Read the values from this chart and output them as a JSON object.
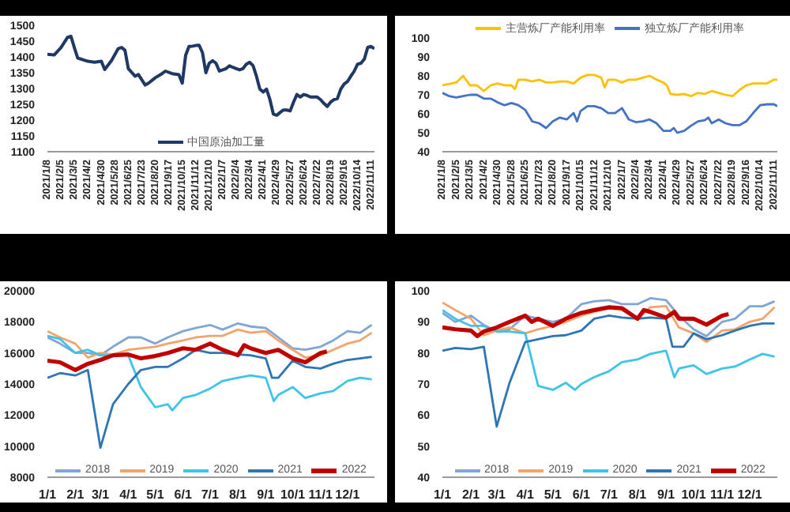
{
  "chart_data": [
    {
      "type": "line",
      "legend": "bottom",
      "ylim": [
        1100,
        1500
      ],
      "yticks": [
        1100,
        1150,
        1200,
        1250,
        1300,
        1350,
        1400,
        1450,
        1500
      ],
      "xlim": [
        "2021-01-08",
        "2022-11-18"
      ],
      "xticks": [
        {
          "value": "2021-01-08",
          "label": "2021/1/8"
        },
        {
          "value": "2021-02-05",
          "label": "2021/2/5"
        },
        {
          "value": "2021-03-05",
          "label": "2021/3/5"
        },
        {
          "value": "2021-04-02",
          "label": "2021/4/2"
        },
        {
          "value": "2021-04-30",
          "label": "2021/4/30"
        },
        {
          "value": "2021-05-28",
          "label": "2021/5/28"
        },
        {
          "value": "2021-06-25",
          "label": "2021/6/25"
        },
        {
          "value": "2021-07-23",
          "label": "2021/7/23"
        },
        {
          "value": "2021-08-20",
          "label": "2021/8/20"
        },
        {
          "value": "2021-09-17",
          "label": "2021/9/17"
        },
        {
          "value": "2021-10-15",
          "label": "2021/10/15"
        },
        {
          "value": "2021-11-12",
          "label": "2021/11/12"
        },
        {
          "value": "2021-12-10",
          "label": "2021/12/10"
        },
        {
          "value": "2022-01-07",
          "label": "2022/1/7"
        },
        {
          "value": "2022-02-04",
          "label": "2022/2/4"
        },
        {
          "value": "2022-03-04",
          "label": "2022/3/4"
        },
        {
          "value": "2022-04-01",
          "label": "2022/4/1"
        },
        {
          "value": "2022-04-29",
          "label": "2022/4/29"
        },
        {
          "value": "2022-05-27",
          "label": "2022/5/27"
        },
        {
          "value": "2022-06-24",
          "label": "2022/6/24"
        },
        {
          "value": "2022-07-22",
          "label": "2022/7/22"
        },
        {
          "value": "2022-08-19",
          "label": "2022/8/19"
        },
        {
          "value": "2022-09-16",
          "label": "2022/9/16"
        },
        {
          "value": "2022-10-14",
          "label": "2022/10/14"
        },
        {
          "value": "2022-11-11",
          "label": "2022/11/11"
        }
      ],
      "series": [
        {
          "name": "中国原油加工量",
          "color": "#1f3864",
          "x": [
            "2021-01-08",
            "2021-01-22",
            "2021-02-05",
            "2021-02-19",
            "2021-02-26",
            "2021-03-05",
            "2021-03-12",
            "2021-03-19",
            "2021-04-02",
            "2021-04-16",
            "2021-04-30",
            "2021-05-07",
            "2021-05-21",
            "2021-06-04",
            "2021-06-11",
            "2021-06-18",
            "2021-06-25",
            "2021-07-09",
            "2021-07-16",
            "2021-07-30",
            "2021-08-06",
            "2021-08-20",
            "2021-09-03",
            "2021-09-10",
            "2021-09-24",
            "2021-10-08",
            "2021-10-15",
            "2021-10-22",
            "2021-10-29",
            "2021-11-05",
            "2021-11-12",
            "2021-11-19",
            "2021-11-26",
            "2021-12-03",
            "2021-12-10",
            "2021-12-17",
            "2021-12-24",
            "2021-12-31",
            "2022-01-07",
            "2022-01-14",
            "2022-01-21",
            "2022-01-28",
            "2022-02-04",
            "2022-02-11",
            "2022-02-18",
            "2022-02-25",
            "2022-03-04",
            "2022-03-11",
            "2022-03-18",
            "2022-03-25",
            "2022-04-01",
            "2022-04-08",
            "2022-04-15",
            "2022-04-22",
            "2022-04-29",
            "2022-05-06",
            "2022-05-13",
            "2022-05-20",
            "2022-05-27",
            "2022-06-03",
            "2022-06-10",
            "2022-06-17",
            "2022-06-24",
            "2022-07-01",
            "2022-07-08",
            "2022-07-15",
            "2022-07-22",
            "2022-07-29",
            "2022-08-05",
            "2022-08-12",
            "2022-08-19",
            "2022-08-26",
            "2022-09-02",
            "2022-09-09",
            "2022-09-16",
            "2022-09-23",
            "2022-09-30",
            "2022-10-07",
            "2022-10-14",
            "2022-10-21",
            "2022-10-28",
            "2022-11-04",
            "2022-11-11",
            "2022-11-18"
          ],
          "values": [
            1408,
            1406,
            1429,
            1462,
            1465,
            1429,
            1396,
            1393,
            1386,
            1383,
            1386,
            1360,
            1388,
            1426,
            1430,
            1421,
            1363,
            1339,
            1344,
            1311,
            1317,
            1334,
            1347,
            1355,
            1347,
            1344,
            1317,
            1405,
            1433,
            1434,
            1436,
            1437,
            1413,
            1350,
            1380,
            1388,
            1380,
            1355,
            1359,
            1363,
            1372,
            1367,
            1363,
            1359,
            1363,
            1377,
            1383,
            1372,
            1339,
            1298,
            1289,
            1298,
            1265,
            1219,
            1215,
            1224,
            1232,
            1232,
            1229,
            1257,
            1281,
            1273,
            1281,
            1278,
            1273,
            1273,
            1273,
            1265,
            1253,
            1243,
            1257,
            1265,
            1268,
            1298,
            1314,
            1322,
            1339,
            1355,
            1377,
            1380,
            1393,
            1430,
            1433,
            1426
          ]
        }
      ]
    },
    {
      "type": "line",
      "legend": "top",
      "ylim": [
        40,
        100
      ],
      "yticks": [
        40,
        50,
        60,
        70,
        80,
        90,
        100
      ],
      "xlim": [
        "2021-01-08",
        "2022-11-18"
      ],
      "xticks": [
        {
          "value": "2021-01-08",
          "label": "2021/1/8"
        },
        {
          "value": "2021-02-05",
          "label": "2021/2/5"
        },
        {
          "value": "2021-03-05",
          "label": "2021/3/5"
        },
        {
          "value": "2021-04-02",
          "label": "2021/4/2"
        },
        {
          "value": "2021-04-30",
          "label": "2021/4/30"
        },
        {
          "value": "2021-05-28",
          "label": "2021/5/28"
        },
        {
          "value": "2021-06-25",
          "label": "2021/6/25"
        },
        {
          "value": "2021-07-23",
          "label": "2021/7/23"
        },
        {
          "value": "2021-08-20",
          "label": "2021/8/20"
        },
        {
          "value": "2021-09-17",
          "label": "2021/9/17"
        },
        {
          "value": "2021-10-15",
          "label": "2021/10/15"
        },
        {
          "value": "2021-11-12",
          "label": "2021/11/12"
        },
        {
          "value": "2021-12-10",
          "label": "2021/12/10"
        },
        {
          "value": "2022-01-07",
          "label": "2022/1/7"
        },
        {
          "value": "2022-02-04",
          "label": "2022/2/4"
        },
        {
          "value": "2022-03-04",
          "label": "2022/3/4"
        },
        {
          "value": "2022-04-01",
          "label": "2022/4/1"
        },
        {
          "value": "2022-04-29",
          "label": "2022/4/29"
        },
        {
          "value": "2022-05-27",
          "label": "2022/5/27"
        },
        {
          "value": "2022-06-24",
          "label": "2022/6/24"
        },
        {
          "value": "2022-07-22",
          "label": "2022/7/22"
        },
        {
          "value": "2022-08-19",
          "label": "2022/8/19"
        },
        {
          "value": "2022-09-16",
          "label": "2022/9/16"
        },
        {
          "value": "2022-10-14",
          "label": "2022/10/14"
        },
        {
          "value": "2022-11-11",
          "label": "2022/11/11"
        }
      ],
      "series": [
        {
          "name": "主营炼厂产能利用率",
          "color": "#ffc000",
          "x": [
            "2021-01-08",
            "2021-02-05",
            "2021-02-19",
            "2021-03-05",
            "2021-03-19",
            "2021-04-02",
            "2021-04-16",
            "2021-04-30",
            "2021-05-14",
            "2021-05-28",
            "2021-06-04",
            "2021-06-11",
            "2021-06-25",
            "2021-07-09",
            "2021-07-23",
            "2021-08-06",
            "2021-08-20",
            "2021-09-03",
            "2021-09-17",
            "2021-10-01",
            "2021-10-15",
            "2021-10-29",
            "2021-11-12",
            "2021-11-26",
            "2021-12-03",
            "2021-12-10",
            "2021-12-24",
            "2022-01-07",
            "2022-01-21",
            "2022-02-04",
            "2022-02-18",
            "2022-03-04",
            "2022-03-18",
            "2022-04-01",
            "2022-04-08",
            "2022-04-15",
            "2022-04-29",
            "2022-05-13",
            "2022-05-27",
            "2022-06-10",
            "2022-06-24",
            "2022-07-08",
            "2022-07-22",
            "2022-08-05",
            "2022-08-19",
            "2022-09-02",
            "2022-09-16",
            "2022-09-30",
            "2022-10-14",
            "2022-10-28",
            "2022-11-11",
            "2022-11-18"
          ],
          "values": [
            75,
            76.5,
            80,
            75,
            75,
            72,
            75,
            76,
            75,
            75,
            73,
            78,
            78,
            77,
            78,
            76.5,
            76.5,
            77,
            77,
            76,
            79,
            80.5,
            80.5,
            79,
            74,
            78,
            78,
            76.5,
            78,
            78,
            79,
            80,
            78,
            76.5,
            75,
            70.5,
            70,
            70.5,
            69.3,
            71,
            70.5,
            72,
            71,
            70,
            69.3,
            72.5,
            75,
            76,
            76,
            76,
            78,
            78
          ]
        },
        {
          "name": "独立炼厂产能利用率",
          "color": "#4472c4",
          "x": [
            "2021-01-08",
            "2021-01-22",
            "2021-02-05",
            "2021-02-19",
            "2021-03-05",
            "2021-03-19",
            "2021-04-02",
            "2021-04-16",
            "2021-04-30",
            "2021-05-14",
            "2021-05-28",
            "2021-06-11",
            "2021-06-25",
            "2021-07-09",
            "2021-07-23",
            "2021-08-06",
            "2021-08-20",
            "2021-09-03",
            "2021-09-17",
            "2021-10-01",
            "2021-10-08",
            "2021-10-15",
            "2021-10-29",
            "2021-11-12",
            "2021-11-26",
            "2021-12-10",
            "2021-12-24",
            "2022-01-07",
            "2022-01-21",
            "2022-02-04",
            "2022-02-18",
            "2022-03-04",
            "2022-03-18",
            "2022-04-01",
            "2022-04-15",
            "2022-04-22",
            "2022-04-29",
            "2022-05-13",
            "2022-05-27",
            "2022-06-10",
            "2022-06-24",
            "2022-07-01",
            "2022-07-08",
            "2022-07-22",
            "2022-08-05",
            "2022-08-19",
            "2022-09-02",
            "2022-09-16",
            "2022-09-30",
            "2022-10-14",
            "2022-10-28",
            "2022-11-11",
            "2022-11-18"
          ],
          "values": [
            71,
            69.3,
            68.6,
            69.3,
            70,
            70,
            68,
            68,
            66,
            64.5,
            65.7,
            64.5,
            62,
            56,
            55,
            52.5,
            56,
            58,
            57,
            60.4,
            56,
            61.4,
            64,
            64,
            63,
            60.4,
            60.4,
            63,
            57,
            55.6,
            56,
            57,
            55,
            51,
            51,
            52.5,
            50,
            51,
            53.7,
            56,
            56.6,
            58,
            55,
            57,
            55,
            54,
            54,
            56,
            60.4,
            64.5,
            65,
            65,
            64
          ]
        }
      ]
    },
    {
      "type": "line",
      "legend": "bottom",
      "ylim": [
        8000,
        20000
      ],
      "yticks": [
        8000,
        10000,
        12000,
        14000,
        16000,
        18000,
        20000
      ],
      "xlim": [
        "--01-01",
        "--12-31"
      ],
      "xticks": [
        {
          "value": "--01-01",
          "label": "1/1"
        },
        {
          "value": "--02-01",
          "label": "2/1"
        },
        {
          "value": "--03-01",
          "label": "3/1"
        },
        {
          "value": "--04-01",
          "label": "4/1"
        },
        {
          "value": "--05-01",
          "label": "5/1"
        },
        {
          "value": "--06-01",
          "label": "6/1"
        },
        {
          "value": "--07-01",
          "label": "7/1"
        },
        {
          "value": "--08-01",
          "label": "8/1"
        },
        {
          "value": "--09-01",
          "label": "9/1"
        },
        {
          "value": "--10-01",
          "label": "10/1"
        },
        {
          "value": "--11-01",
          "label": "11/1"
        },
        {
          "value": "--12-01",
          "label": "12/1"
        }
      ],
      "series": [
        {
          "name": "2018",
          "color": "#7fa6d6",
          "x": [
            "--01-01",
            "--01-15",
            "--02-01",
            "--02-15",
            "--03-01",
            "--03-15",
            "--04-01",
            "--04-15",
            "--05-01",
            "--05-15",
            "--06-01",
            "--06-15",
            "--07-01",
            "--07-15",
            "--08-01",
            "--08-15",
            "--09-01",
            "--09-15",
            "--10-01",
            "--10-15",
            "--11-01",
            "--11-15",
            "--12-01",
            "--12-15",
            "--12-28"
          ],
          "values": [
            17000,
            16600,
            16000,
            16000,
            15850,
            16400,
            17000,
            17000,
            16600,
            17000,
            17400,
            17600,
            17800,
            17500,
            17900,
            17700,
            17600,
            17000,
            16300,
            16200,
            16400,
            16800,
            17400,
            17300,
            17800
          ]
        },
        {
          "name": "2019",
          "color": "#f4a46a",
          "x": [
            "--01-01",
            "--01-15",
            "--02-01",
            "--02-15",
            "--03-01",
            "--03-15",
            "--04-01",
            "--04-15",
            "--05-01",
            "--05-15",
            "--06-01",
            "--06-15",
            "--07-01",
            "--07-15",
            "--08-01",
            "--08-15",
            "--09-01",
            "--09-15",
            "--10-01",
            "--10-15",
            "--11-01",
            "--11-15",
            "--12-01",
            "--12-15",
            "--12-28"
          ],
          "values": [
            17400,
            17000,
            16600,
            15700,
            16000,
            15900,
            16200,
            16300,
            16400,
            16600,
            16800,
            17000,
            17100,
            17100,
            17500,
            17300,
            17400,
            16800,
            16200,
            15700,
            15850,
            16200,
            16600,
            16800,
            17300
          ]
        },
        {
          "name": "2020",
          "color": "#3fc3e8",
          "x": [
            "--01-01",
            "--01-15",
            "--02-01",
            "--02-15",
            "--03-01",
            "--03-15",
            "--04-01",
            "--04-15",
            "--05-01",
            "--05-15",
            "--05-20",
            "--06-01",
            "--06-15",
            "--07-01",
            "--07-15",
            "--08-01",
            "--08-15",
            "--09-01",
            "--09-10",
            "--09-15",
            "--10-01",
            "--10-15",
            "--11-01",
            "--11-15",
            "--12-01",
            "--12-15",
            "--12-28"
          ],
          "values": [
            17100,
            16900,
            16000,
            16200,
            15850,
            15850,
            15850,
            13800,
            12500,
            12700,
            12300,
            13100,
            13300,
            13700,
            14200,
            14400,
            14550,
            14400,
            12900,
            13300,
            13800,
            13100,
            13400,
            13550,
            14200,
            14400,
            14300
          ]
        },
        {
          "name": "2021",
          "color": "#2e75b6",
          "x": [
            "--01-01",
            "--01-15",
            "--02-01",
            "--02-15",
            "--03-01",
            "--03-15",
            "--04-01",
            "--04-15",
            "--05-01",
            "--05-15",
            "--06-01",
            "--06-15",
            "--07-01",
            "--07-15",
            "--08-01",
            "--08-15",
            "--09-01",
            "--09-08",
            "--09-15",
            "--10-01",
            "--10-15",
            "--11-01",
            "--11-15",
            "--12-01",
            "--12-15",
            "--12-28"
          ],
          "values": [
            14400,
            14700,
            14550,
            14900,
            9900,
            12700,
            14000,
            14900,
            15100,
            15100,
            15650,
            16200,
            16000,
            16000,
            15900,
            15850,
            15650,
            14400,
            14400,
            15500,
            15100,
            15000,
            15300,
            15550,
            15650,
            15750
          ]
        },
        {
          "name": "2022",
          "color": "#c00000",
          "x": [
            "--01-01",
            "--01-15",
            "--02-01",
            "--02-15",
            "--03-01",
            "--03-15",
            "--04-01",
            "--04-15",
            "--05-01",
            "--05-15",
            "--06-01",
            "--06-15",
            "--07-01",
            "--07-15",
            "--08-01",
            "--08-08",
            "--08-15",
            "--09-01",
            "--09-15",
            "--10-01",
            "--10-15",
            "--11-01",
            "--11-08"
          ],
          "values": [
            15500,
            15400,
            14900,
            15300,
            15550,
            15850,
            15900,
            15650,
            15800,
            16000,
            16300,
            16200,
            16600,
            16200,
            15850,
            16500,
            16300,
            16000,
            16200,
            15650,
            15400,
            16000,
            16100
          ]
        }
      ]
    },
    {
      "type": "line",
      "legend": "bottom",
      "ylim": [
        40,
        100
      ],
      "yticks": [
        40,
        50,
        60,
        70,
        80,
        90,
        100
      ],
      "xlim": [
        "--01-01",
        "--12-31"
      ],
      "xticks": [
        {
          "value": "--01-01",
          "label": "1/1"
        },
        {
          "value": "--02-01",
          "label": "2/1"
        },
        {
          "value": "--03-01",
          "label": "3/1"
        },
        {
          "value": "--04-01",
          "label": "4/1"
        },
        {
          "value": "--05-01",
          "label": "5/1"
        },
        {
          "value": "--06-01",
          "label": "6/1"
        },
        {
          "value": "--07-01",
          "label": "7/1"
        },
        {
          "value": "--08-01",
          "label": "8/1"
        },
        {
          "value": "--09-01",
          "label": "9/1"
        },
        {
          "value": "--10-01",
          "label": "10/1"
        },
        {
          "value": "--11-01",
          "label": "11/1"
        },
        {
          "value": "--12-01",
          "label": "12/1"
        }
      ],
      "series": [
        {
          "name": "2018",
          "color": "#7fa6d6",
          "x": [
            "--01-01",
            "--01-15",
            "--02-01",
            "--02-15",
            "--03-01",
            "--03-15",
            "--04-01",
            "--04-15",
            "--05-01",
            "--05-15",
            "--06-01",
            "--06-15",
            "--07-01",
            "--07-15",
            "--08-01",
            "--08-15",
            "--09-01",
            "--09-15",
            "--10-01",
            "--10-15",
            "--11-01",
            "--11-15",
            "--12-01",
            "--12-15",
            "--12-28"
          ],
          "values": [
            92.9,
            90,
            92,
            89,
            86.9,
            87.6,
            92,
            91,
            90,
            91,
            95.7,
            96.6,
            97,
            95.7,
            95.7,
            97.6,
            97,
            92,
            87.6,
            85.4,
            90,
            91,
            95,
            95,
            96.6
          ]
        },
        {
          "name": "2019",
          "color": "#f4a46a",
          "x": [
            "--01-01",
            "--01-15",
            "--02-01",
            "--02-15",
            "--03-01",
            "--03-15",
            "--04-01",
            "--04-15",
            "--05-01",
            "--05-15",
            "--06-01",
            "--06-15",
            "--07-01",
            "--07-15",
            "--08-01",
            "--08-15",
            "--09-01",
            "--09-15",
            "--10-01",
            "--10-15",
            "--11-01",
            "--11-15",
            "--12-01",
            "--12-15",
            "--12-28"
          ],
          "values": [
            96.2,
            93.8,
            91,
            85.7,
            87.2,
            88.2,
            86.3,
            87.6,
            88.7,
            90,
            92,
            93.2,
            94.4,
            93.8,
            91,
            94.7,
            95.1,
            88.2,
            86.3,
            83.5,
            87.2,
            87.6,
            90,
            91,
            94.7
          ]
        },
        {
          "name": "2020",
          "color": "#3fc3e8",
          "x": [
            "--01-01",
            "--01-15",
            "--02-01",
            "--02-15",
            "--03-01",
            "--03-15",
            "--04-01",
            "--04-15",
            "--05-01",
            "--05-15",
            "--05-25",
            "--06-01",
            "--06-15",
            "--07-01",
            "--07-15",
            "--08-01",
            "--08-15",
            "--09-01",
            "--09-10",
            "--09-15",
            "--10-01",
            "--10-15",
            "--11-01",
            "--11-15",
            "--12-01",
            "--12-15",
            "--12-28"
          ],
          "values": [
            93.8,
            91,
            88.7,
            88.7,
            86.9,
            86.9,
            86.3,
            69.4,
            68.1,
            70.4,
            68.1,
            70,
            72.2,
            74.1,
            77,
            77.9,
            79.7,
            80.7,
            72.2,
            75,
            76,
            73.2,
            75,
            75.6,
            77.9,
            79.7,
            78.8
          ]
        },
        {
          "name": "2021",
          "color": "#2e75b6",
          "x": [
            "--01-01",
            "--01-15",
            "--02-01",
            "--02-15",
            "--03-01",
            "--03-15",
            "--04-01",
            "--04-15",
            "--05-01",
            "--05-15",
            "--06-01",
            "--06-15",
            "--07-01",
            "--07-15",
            "--08-01",
            "--08-15",
            "--09-01",
            "--09-08",
            "--09-20",
            "--10-01",
            "--10-15",
            "--11-01",
            "--11-15",
            "--12-01",
            "--12-15",
            "--12-28"
          ],
          "values": [
            80.7,
            81.6,
            81.2,
            82,
            56.3,
            70.4,
            83.5,
            84.4,
            85.4,
            85.7,
            87.2,
            91,
            92,
            91.4,
            91,
            91.4,
            91,
            82,
            82,
            86.3,
            84.4,
            85.7,
            87.2,
            88.7,
            89.5,
            89.5
          ]
        },
        {
          "name": "2022",
          "color": "#c00000",
          "x": [
            "--01-01",
            "--01-15",
            "--02-01",
            "--02-08",
            "--02-15",
            "--03-01",
            "--03-15",
            "--04-01",
            "--04-08",
            "--04-15",
            "--05-01",
            "--05-15",
            "--06-01",
            "--06-15",
            "--07-01",
            "--07-15",
            "--08-01",
            "--08-08",
            "--08-15",
            "--09-01",
            "--09-10",
            "--09-15",
            "--10-01",
            "--10-15",
            "--11-01",
            "--11-08"
          ],
          "values": [
            88.2,
            87.6,
            87.2,
            85.4,
            86.9,
            88.2,
            90,
            92,
            90,
            91,
            88.7,
            91,
            92.9,
            93.8,
            94.7,
            94.4,
            91,
            93.8,
            93.2,
            91.4,
            93.2,
            91,
            91,
            89.1,
            92,
            92.5
          ]
        }
      ]
    }
  ]
}
